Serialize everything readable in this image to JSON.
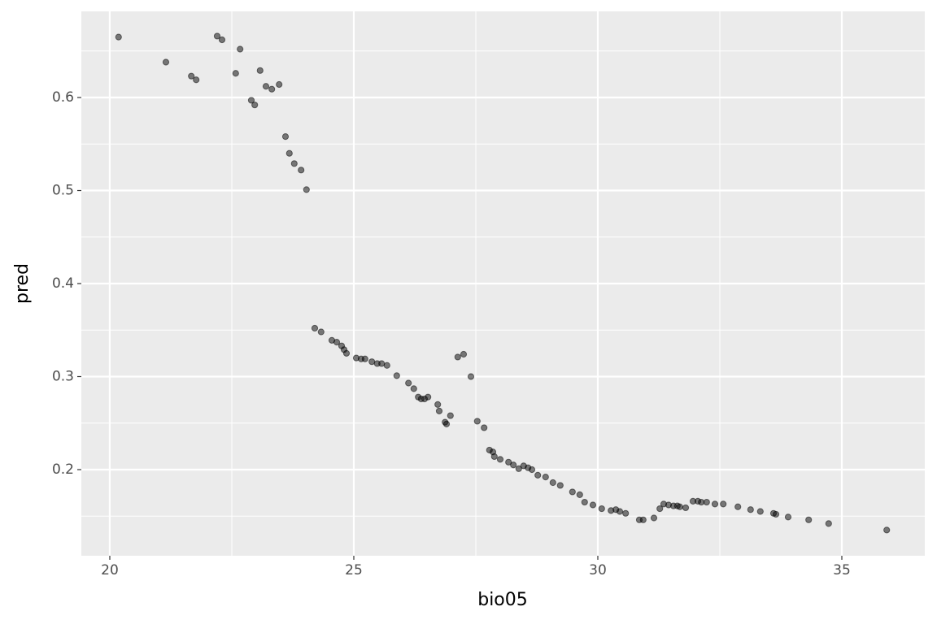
{
  "chart_data": {
    "type": "scatter",
    "x_label": "bio05",
    "y_label": "pred",
    "color": "#000000",
    "alpha": 0.5,
    "grid": true,
    "minor_grid": true,
    "xlim": [
      19.417,
      36.7
    ],
    "ylim": [
      0.1074,
      0.6926
    ],
    "xticks": [
      20,
      25,
      30,
      35
    ],
    "yticks": [
      0.2,
      0.3,
      0.4,
      0.5,
      0.6
    ],
    "x": [
      20.18,
      21.15,
      21.67,
      21.77,
      22.2,
      22.3,
      22.58,
      22.67,
      22.9,
      22.97,
      23.08,
      23.2,
      23.32,
      23.47,
      23.6,
      23.68,
      23.78,
      23.92,
      24.03,
      24.2,
      24.33,
      24.55,
      24.65,
      24.75,
      24.8,
      24.85,
      25.05,
      25.15,
      25.23,
      25.37,
      25.48,
      25.57,
      25.68,
      25.88,
      26.12,
      26.23,
      26.32,
      26.38,
      26.45,
      26.52,
      26.72,
      26.75,
      26.87,
      26.9,
      26.98,
      27.13,
      27.25,
      27.4,
      27.53,
      27.67,
      27.78,
      27.85,
      27.88,
      28.0,
      28.17,
      28.27,
      28.38,
      28.48,
      28.57,
      28.65,
      28.77,
      28.93,
      29.08,
      29.23,
      29.48,
      29.63,
      29.73,
      29.9,
      30.08,
      30.27,
      30.37,
      30.45,
      30.57,
      30.85,
      30.93,
      31.15,
      31.27,
      31.35,
      31.45,
      31.55,
      31.63,
      31.68,
      31.8,
      31.95,
      32.05,
      32.12,
      32.23,
      32.4,
      32.57,
      32.87,
      33.13,
      33.33,
      33.6,
      33.65,
      33.9,
      34.32,
      34.73,
      35.92
    ],
    "values": [
      0.665,
      0.638,
      0.623,
      0.619,
      0.666,
      0.662,
      0.626,
      0.652,
      0.597,
      0.592,
      0.629,
      0.612,
      0.609,
      0.614,
      0.558,
      0.54,
      0.529,
      0.522,
      0.501,
      0.352,
      0.348,
      0.339,
      0.337,
      0.333,
      0.329,
      0.325,
      0.32,
      0.319,
      0.319,
      0.316,
      0.314,
      0.314,
      0.312,
      0.301,
      0.293,
      0.287,
      0.278,
      0.276,
      0.276,
      0.278,
      0.27,
      0.263,
      0.251,
      0.249,
      0.258,
      0.321,
      0.324,
      0.3,
      0.252,
      0.245,
      0.221,
      0.219,
      0.214,
      0.211,
      0.208,
      0.205,
      0.201,
      0.204,
      0.202,
      0.2,
      0.194,
      0.192,
      0.186,
      0.183,
      0.176,
      0.173,
      0.165,
      0.162,
      0.158,
      0.156,
      0.157,
      0.155,
      0.153,
      0.146,
      0.146,
      0.148,
      0.158,
      0.163,
      0.162,
      0.161,
      0.161,
      0.16,
      0.159,
      0.166,
      0.166,
      0.165,
      0.165,
      0.163,
      0.163,
      0.16,
      0.157,
      0.155,
      0.153,
      0.152,
      0.149,
      0.146,
      0.142,
      0.135
    ]
  }
}
